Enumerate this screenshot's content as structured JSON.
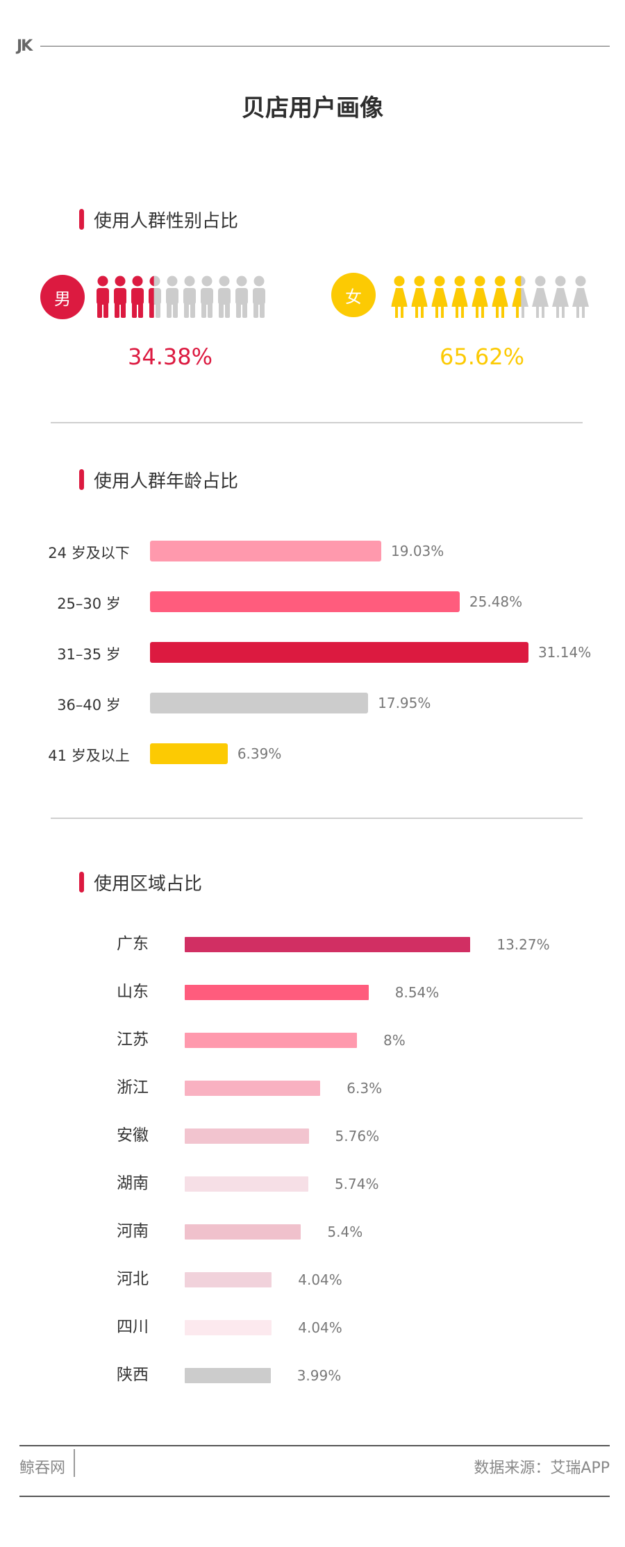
{
  "header": {
    "logo": "JK",
    "title": "贝店用户画像"
  },
  "colors": {
    "accent": "#dc1a40",
    "female": "#fcca03",
    "grey": "#cccccc"
  },
  "sections": {
    "gender": "使用人群性别占比",
    "age": "使用人群年龄占比",
    "region": "使用区域占比"
  },
  "chart_data": [
    {
      "type": "pictogram",
      "title": "使用人群性别占比",
      "categories": [
        "男",
        "女"
      ],
      "values": [
        34.38,
        65.62
      ],
      "value_labels": [
        "34.38%",
        "65.62%"
      ],
      "icons_per_group": 10,
      "colors": [
        "#dc1a40",
        "#fcca03"
      ]
    },
    {
      "type": "bar",
      "orientation": "horizontal",
      "title": "使用人群年龄占比",
      "categories": [
        "24 岁及以下",
        "25–30 岁",
        "31–35 岁",
        "36–40 岁",
        "41 岁及以上"
      ],
      "values": [
        19.03,
        25.48,
        31.14,
        17.95,
        6.39
      ],
      "value_labels": [
        "19.03%",
        "25.48%",
        "31.14%",
        "17.95%",
        "6.39%"
      ],
      "colors": [
        "#ff99ad",
        "#ff5c7d",
        "#dc1a40",
        "#cccccc",
        "#fcca03"
      ]
    },
    {
      "type": "bar",
      "orientation": "horizontal",
      "title": "使用区域占比",
      "categories": [
        "广东",
        "山东",
        "江苏",
        "浙江",
        "安徽",
        "湖南",
        "河南",
        "河北",
        "四川",
        "陕西"
      ],
      "values": [
        13.27,
        8.54,
        8,
        6.3,
        5.76,
        5.74,
        5.4,
        4.04,
        4.04,
        3.99
      ],
      "value_labels": [
        "13.27%",
        "8.54%",
        "8%",
        "6.3%",
        "5.76%",
        "5.74%",
        "5.4%",
        "4.04%",
        "4.04%",
        "3.99%"
      ],
      "colors": [
        "#d12f63",
        "#ff5c7d",
        "#ff99ad",
        "#f9b1c1",
        "#f2c4cf",
        "#f6dfe6",
        "#f0c1cc",
        "#f1d2db",
        "#fce9ee",
        "#cccccc"
      ]
    }
  ],
  "footer": {
    "left": "鲸吞网",
    "right": "数据来源：艾瑞APP"
  }
}
